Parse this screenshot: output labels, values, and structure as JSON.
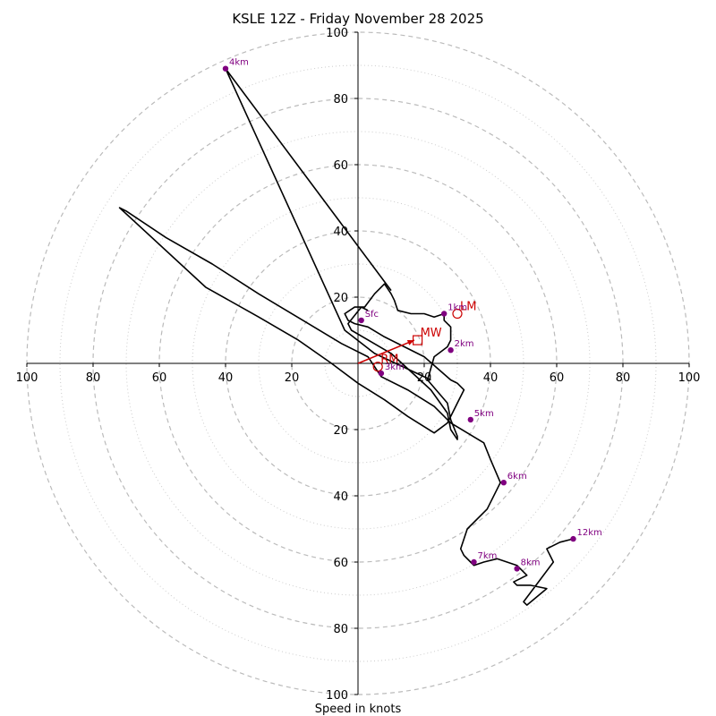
{
  "chart_data": {
    "type": "hodograph",
    "title": "KSLE 12Z - Friday November 28 2025",
    "xlabel": "Speed in knots",
    "range": [
      -100,
      100
    ],
    "ring_major": [
      20,
      40,
      60,
      80,
      100
    ],
    "ring_minor": [
      10,
      30,
      50,
      70,
      90
    ],
    "ticks": [
      {
        "u": -100,
        "label": "100"
      },
      {
        "u": -80,
        "label": "80"
      },
      {
        "u": -60,
        "label": "60"
      },
      {
        "u": -40,
        "label": "40"
      },
      {
        "u": -20,
        "label": "20"
      },
      {
        "u": 20,
        "label": "20"
      },
      {
        "u": 40,
        "label": "40"
      },
      {
        "u": 60,
        "label": "60"
      },
      {
        "u": 80,
        "label": "80"
      },
      {
        "u": 100,
        "label": "100"
      }
    ],
    "vticks": [
      {
        "v": 100,
        "label": "100"
      },
      {
        "v": 80,
        "label": "80"
      },
      {
        "v": 60,
        "label": "60"
      },
      {
        "v": 40,
        "label": "40"
      },
      {
        "v": 20,
        "label": "20"
      },
      {
        "v": -20,
        "label": "20"
      },
      {
        "v": -40,
        "label": "40"
      },
      {
        "v": -60,
        "label": "60"
      },
      {
        "v": -80,
        "label": "80"
      },
      {
        "v": -100,
        "label": "100"
      }
    ],
    "trace": [
      [
        3,
        16
      ],
      [
        1,
        17
      ],
      [
        -3,
        12
      ],
      [
        -2,
        10
      ],
      [
        10,
        3
      ],
      [
        22,
        -8
      ],
      [
        27,
        -15
      ],
      [
        28,
        -20
      ],
      [
        30,
        -23
      ],
      [
        30,
        -22
      ],
      [
        28,
        -17
      ],
      [
        27,
        -12
      ],
      [
        21,
        -5
      ],
      [
        23,
        2
      ],
      [
        27,
        5
      ],
      [
        28,
        7
      ],
      [
        28,
        10
      ],
      [
        28,
        11
      ],
      [
        26,
        13
      ],
      [
        26,
        15
      ],
      [
        23,
        14
      ],
      [
        20,
        15
      ],
      [
        16,
        15
      ],
      [
        12,
        16
      ],
      [
        11,
        19
      ],
      [
        10,
        21
      ],
      [
        8,
        24
      ],
      [
        5,
        21
      ],
      [
        2,
        17
      ],
      [
        -1,
        17
      ],
      [
        -4,
        15
      ],
      [
        -3,
        13
      ],
      [
        -1,
        12
      ],
      [
        3,
        11
      ],
      [
        8,
        8
      ],
      [
        14,
        5
      ],
      [
        20,
        2
      ],
      [
        28,
        -5
      ],
      [
        30,
        -6
      ],
      [
        32,
        -8
      ],
      [
        30,
        -12
      ],
      [
        27,
        -18
      ],
      [
        23,
        -21
      ],
      [
        15,
        -16
      ],
      [
        8,
        -11
      ],
      [
        0,
        -6
      ],
      [
        -8,
        0
      ],
      [
        -18,
        7
      ],
      [
        -30,
        14
      ],
      [
        -46,
        23
      ],
      [
        -72,
        47
      ],
      [
        -70,
        46
      ],
      [
        -58,
        38
      ],
      [
        -44,
        30
      ],
      [
        -30,
        21
      ],
      [
        -15,
        12
      ],
      [
        -5,
        6
      ],
      [
        3,
        2
      ],
      [
        7,
        -4
      ],
      [
        15,
        -8
      ],
      [
        23,
        -13
      ],
      [
        28,
        -18
      ],
      [
        38,
        -24
      ],
      [
        40,
        -29
      ],
      [
        43,
        -36
      ],
      [
        39,
        -44
      ],
      [
        33,
        -50
      ],
      [
        31,
        -56
      ],
      [
        32,
        -58
      ],
      [
        34,
        -60
      ],
      [
        35,
        -61
      ],
      [
        38,
        -60
      ],
      [
        42,
        -59
      ],
      [
        48,
        -61
      ],
      [
        51,
        -64
      ],
      [
        47,
        -66
      ],
      [
        48,
        -67
      ],
      [
        52,
        -67
      ],
      [
        57,
        -68
      ],
      [
        51,
        -73
      ],
      [
        50,
        -72
      ],
      [
        53,
        -68
      ],
      [
        59,
        -60
      ],
      [
        57,
        -56
      ],
      [
        61,
        -54
      ],
      [
        65,
        -53
      ]
    ],
    "upper_trace": [
      [
        10,
        22
      ],
      [
        -40,
        89
      ],
      [
        -4,
        10
      ],
      [
        5,
        3
      ],
      [
        22,
        -5
      ]
    ],
    "height_points": [
      {
        "label": "Sfc",
        "u": 1,
        "v": 13
      },
      {
        "label": "1km",
        "u": 26,
        "v": 15
      },
      {
        "label": "2km",
        "u": 28,
        "v": 4
      },
      {
        "label": "3km",
        "u": 7,
        "v": -3
      },
      {
        "label": "4km",
        "u": -40,
        "v": 89
      },
      {
        "label": "5km",
        "u": 34,
        "v": -17
      },
      {
        "label": "6km",
        "u": 44,
        "v": -36
      },
      {
        "label": "7km",
        "u": 35,
        "v": -60
      },
      {
        "label": "8km",
        "u": 48,
        "v": -62
      },
      {
        "label": "12km",
        "u": 65,
        "v": -53
      }
    ],
    "markers": [
      {
        "label": "LM",
        "shape": "circle",
        "u": 30,
        "v": 15
      },
      {
        "label": "MW",
        "shape": "square",
        "u": 18,
        "v": 7
      },
      {
        "label": "RM",
        "shape": "circle",
        "u": 6,
        "v": -1
      }
    ],
    "storm_motion_vector": {
      "from": [
        0,
        0
      ],
      "to": [
        17,
        7
      ]
    },
    "colors": {
      "trace": "#000000",
      "points": "#800080",
      "markers": "#cc0000",
      "ring_major": "#bbbbbb",
      "ring_minor": "#cccccc",
      "axis": "#000000"
    }
  }
}
